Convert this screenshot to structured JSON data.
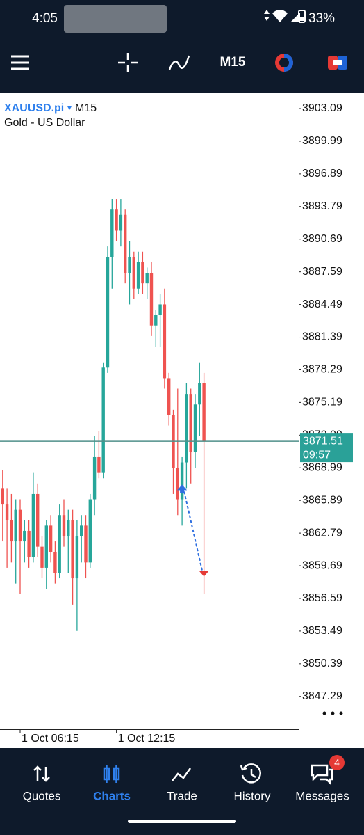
{
  "status_bar": {
    "time": "4:05",
    "battery": "33%"
  },
  "toolbar": {
    "timeframe": "M15"
  },
  "chart_data": {
    "type": "candlestick",
    "symbol": "XAUUSD.pi",
    "timeframe": "M15",
    "description": "Gold - US Dollar",
    "up_color": "#26a69a",
    "down_color": "#ef5350",
    "ylim": [
      3844.17,
      3904.61
    ],
    "yticks": [
      3903.09,
      3899.99,
      3896.89,
      3893.79,
      3890.69,
      3887.59,
      3884.49,
      3881.39,
      3878.29,
      3875.19,
      3872.09,
      3868.99,
      3865.89,
      3862.79,
      3859.69,
      3856.59,
      3853.49,
      3850.39,
      3847.29
    ],
    "categories": [
      null,
      null,
      null,
      null,
      "1 Oct 06:15",
      null,
      null,
      null,
      null,
      null,
      null,
      null,
      null,
      null,
      null,
      null,
      null,
      null,
      null,
      null,
      null,
      null,
      null,
      null,
      null,
      null,
      "1 Oct 12:15",
      null,
      null,
      null,
      null,
      null,
      null,
      null,
      null,
      null,
      null,
      null,
      null,
      null,
      null,
      null,
      null,
      null,
      null,
      null,
      null
    ],
    "open": [
      3867.0,
      3865.5,
      3864.0,
      3862.0,
      3865.0,
      3862.0,
      3863.0,
      3860.5,
      3866.5,
      3861.5,
      3859.5,
      3863.5,
      3861.0,
      3859.0,
      3864.5,
      3862.5,
      3864.0,
      3858.5,
      3862.5,
      3863.5,
      3860.0,
      3866.0,
      3870.0,
      3868.5,
      3878.5,
      3889.0,
      3893.5,
      3891.5,
      3893.0,
      3887.5,
      3889.0,
      3886.0,
      3888.5,
      3886.5,
      3887.5,
      3882.5,
      3883.5,
      3884.5,
      3877.5,
      3874.0,
      3869.0,
      3866.0,
      3869.5,
      3876.0,
      3870.5,
      3875.0,
      3877.0
    ],
    "high": [
      3868.8,
      3867.0,
      3866.5,
      3866.0,
      3866.0,
      3864.0,
      3864.0,
      3868.5,
      3867.5,
      3862.5,
      3864.0,
      3864.5,
      3862.0,
      3865.5,
      3866.0,
      3865.0,
      3865.0,
      3864.0,
      3864.5,
      3864.5,
      3866.5,
      3872.0,
      3872.5,
      3879.0,
      3890.0,
      3894.5,
      3894.5,
      3894.5,
      3893.5,
      3890.5,
      3889.5,
      3889.5,
      3889.5,
      3888.0,
      3888.5,
      3884.0,
      3885.5,
      3886.0,
      3878.0,
      3874.5,
      3876.5,
      3870.0,
      3877.0,
      3876.5,
      3876.0,
      3879.0,
      3878.0
    ],
    "low": [
      3862.0,
      3859.5,
      3860.0,
      3858.0,
      3857.0,
      3860.0,
      3859.5,
      3860.0,
      3860.5,
      3858.5,
      3857.5,
      3860.0,
      3858.0,
      3858.5,
      3861.5,
      3859.0,
      3856.0,
      3853.5,
      3860.0,
      3858.5,
      3859.5,
      3864.5,
      3868.0,
      3868.0,
      3878.0,
      3886.0,
      3890.5,
      3890.0,
      3886.5,
      3884.5,
      3885.0,
      3885.5,
      3885.5,
      3885.0,
      3881.5,
      3880.5,
      3880.5,
      3876.5,
      3873.0,
      3866.5,
      3864.5,
      3863.5,
      3867.0,
      3867.5,
      3869.0,
      3872.0,
      3857.0
    ],
    "close": [
      3865.5,
      3864.0,
      3862.0,
      3865.0,
      3862.0,
      3863.0,
      3860.5,
      3866.5,
      3861.5,
      3859.5,
      3863.5,
      3861.0,
      3859.0,
      3864.5,
      3862.5,
      3864.0,
      3858.5,
      3862.5,
      3863.5,
      3860.0,
      3866.0,
      3870.0,
      3868.5,
      3878.5,
      3889.0,
      3893.5,
      3891.5,
      3893.0,
      3887.5,
      3889.0,
      3886.0,
      3888.5,
      3886.5,
      3887.5,
      3882.5,
      3883.5,
      3884.5,
      3877.5,
      3874.0,
      3869.0,
      3866.0,
      3869.5,
      3876.0,
      3870.5,
      3875.0,
      3877.0,
      3871.5
    ],
    "last_price": 3871.51,
    "countdown": "09:57",
    "trade": {
      "entry": 3867.0,
      "exit": 3858.8
    }
  },
  "nav": {
    "items": [
      "Quotes",
      "Charts",
      "Trade",
      "History",
      "Messages"
    ],
    "badge": "4"
  }
}
